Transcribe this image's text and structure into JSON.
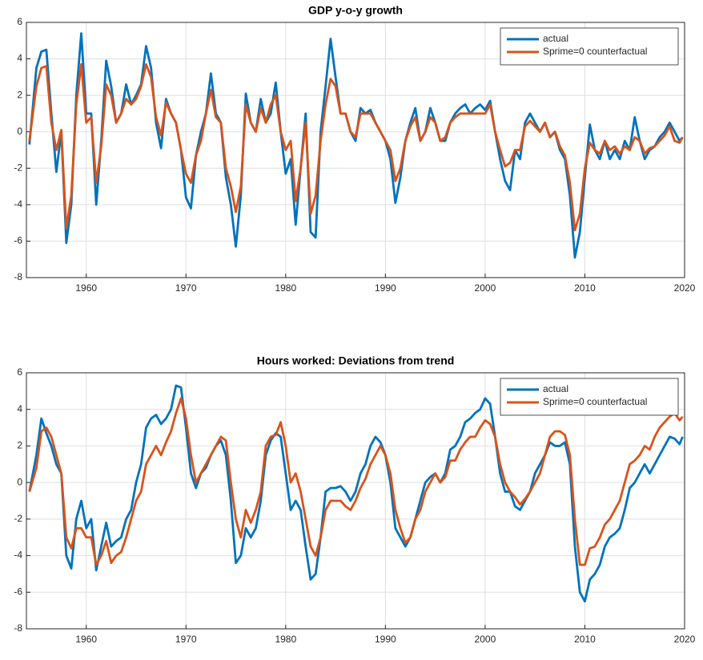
{
  "chart_data": [
    {
      "type": "line",
      "title": "GDP y-o-y growth",
      "x": [
        1954.3,
        1955,
        1955.5,
        1956,
        1956.5,
        1957,
        1957.5,
        1958,
        1958.5,
        1959,
        1959.5,
        1960,
        1960.5,
        1961,
        1961.5,
        1962,
        1962.5,
        1963,
        1963.5,
        1964,
        1964.5,
        1965,
        1965.5,
        1966,
        1966.5,
        1967,
        1967.5,
        1968,
        1968.5,
        1969,
        1969.5,
        1970,
        1970.5,
        1971,
        1971.5,
        1972,
        1972.5,
        1973,
        1973.5,
        1974,
        1974.5,
        1975,
        1975.5,
        1976,
        1976.5,
        1977,
        1977.5,
        1978,
        1978.5,
        1979,
        1979.5,
        1980,
        1980.5,
        1981,
        1981.5,
        1982,
        1982.5,
        1983,
        1983.5,
        1984,
        1984.5,
        1985,
        1985.5,
        1986,
        1986.5,
        1987,
        1987.5,
        1988,
        1988.5,
        1989,
        1989.5,
        1990,
        1990.5,
        1991,
        1991.5,
        1992,
        1992.5,
        1993,
        1993.5,
        1994,
        1994.5,
        1995,
        1995.5,
        1996,
        1996.5,
        1997,
        1997.5,
        1998,
        1998.5,
        1999,
        1999.5,
        2000,
        2000.5,
        2001,
        2001.5,
        2002,
        2002.5,
        2003,
        2003.5,
        2004,
        2004.5,
        2005,
        2005.5,
        2006,
        2006.5,
        2007,
        2007.5,
        2008,
        2008.5,
        2009,
        2009.5,
        2010,
        2010.5,
        2011,
        2011.5,
        2012,
        2012.5,
        2013,
        2013.5,
        2014,
        2014.5,
        2015,
        2015.5,
        2016,
        2016.5,
        2017,
        2017.5,
        2018,
        2018.5,
        2019,
        2019.5,
        2019.8
      ],
      "series": [
        {
          "name": "actual",
          "color": "#0072bd",
          "values": [
            -0.7,
            3.5,
            4.4,
            4.5,
            1.0,
            -2.2,
            0.0,
            -6.1,
            -4.0,
            2.0,
            5.4,
            1.0,
            1.0,
            -4.0,
            -0.5,
            3.9,
            2.5,
            0.5,
            1.0,
            2.6,
            1.5,
            2.0,
            2.6,
            4.7,
            3.5,
            0.5,
            -0.9,
            1.8,
            1.0,
            0.5,
            -1.0,
            -3.6,
            -4.2,
            -1.3,
            0.0,
            1.0,
            3.2,
            1.0,
            0.5,
            -2.5,
            -4.0,
            -6.3,
            -3.5,
            2.1,
            0.5,
            0.0,
            1.8,
            0.5,
            1.0,
            2.7,
            0.0,
            -2.3,
            -1.5,
            -5.1,
            -2.0,
            1.0,
            -5.5,
            -5.8,
            0.0,
            2.5,
            5.1,
            3.0,
            1.0,
            1.0,
            0.0,
            -0.5,
            1.3,
            1.0,
            1.2,
            0.5,
            0.0,
            -0.5,
            -1.5,
            -3.9,
            -2.5,
            -0.5,
            0.5,
            1.3,
            -0.5,
            0.0,
            1.3,
            0.5,
            -0.5,
            -0.5,
            0.5,
            1.0,
            1.3,
            1.5,
            1.0,
            1.3,
            1.5,
            1.2,
            1.7,
            0.0,
            -1.5,
            -2.7,
            -3.2,
            -1.0,
            -1.5,
            0.5,
            1.0,
            0.5,
            0.0,
            0.5,
            -0.3,
            0.0,
            -1.0,
            -1.5,
            -3.5,
            -6.9,
            -5.5,
            -2.5,
            0.4,
            -1.0,
            -1.5,
            -0.5,
            -1.5,
            -1.0,
            -1.5,
            -0.5,
            -1.0,
            0.8,
            -0.5,
            -1.5,
            -1.0,
            -0.8,
            -0.3,
            0.0,
            0.5,
            0.0,
            -0.5,
            -0.3
          ]
        },
        {
          "name": "Sprime=0 counterfactual",
          "color": "#d95319",
          "values": [
            -0.5,
            2.5,
            3.5,
            3.6,
            0.5,
            -1.0,
            0.1,
            -5.3,
            -3.5,
            1.5,
            3.7,
            0.5,
            0.8,
            -2.8,
            -0.8,
            2.6,
            2.0,
            0.5,
            1.0,
            1.8,
            1.5,
            1.8,
            2.5,
            3.7,
            3.0,
            0.8,
            -0.2,
            1.6,
            1.0,
            0.5,
            -1.0,
            -2.3,
            -2.8,
            -1.3,
            -0.5,
            1.0,
            2.3,
            0.8,
            0.5,
            -2.0,
            -3.0,
            -4.4,
            -3.0,
            1.5,
            0.5,
            0.0,
            1.3,
            0.5,
            1.5,
            2.0,
            0.0,
            -1.0,
            -0.5,
            -3.8,
            -2.0,
            0.5,
            -4.5,
            -3.5,
            -0.5,
            1.5,
            2.9,
            2.5,
            1.0,
            1.0,
            0.0,
            -0.3,
            1.0,
            1.0,
            1.0,
            0.5,
            0.0,
            -0.5,
            -1.0,
            -2.7,
            -2.0,
            -0.5,
            0.3,
            0.8,
            -0.5,
            0.0,
            0.8,
            0.5,
            -0.5,
            -0.3,
            0.5,
            0.8,
            1.0,
            1.0,
            1.0,
            1.0,
            1.0,
            1.0,
            1.5,
            0.0,
            -1.0,
            -1.9,
            -1.7,
            -1.0,
            -1.0,
            0.3,
            0.6,
            0.3,
            0.0,
            0.5,
            -0.3,
            0.0,
            -0.8,
            -1.3,
            -2.8,
            -5.4,
            -4.5,
            -2.0,
            -0.6,
            -1.0,
            -1.2,
            -0.5,
            -1.0,
            -0.8,
            -1.2,
            -0.8,
            -1.0,
            -0.3,
            -0.5,
            -1.2,
            -0.9,
            -0.8,
            -0.5,
            -0.2,
            0.3,
            -0.5,
            -0.6,
            -0.3
          ]
        }
      ],
      "xlim": [
        1954,
        2020
      ],
      "xticks": [
        1960,
        1970,
        1980,
        1990,
        2000,
        2010,
        2020
      ],
      "ylim": [
        -8,
        6
      ],
      "yticks": [
        -8,
        -6,
        -4,
        -2,
        0,
        2,
        4,
        6
      ],
      "grid": true,
      "legend": "upper right"
    },
    {
      "type": "line",
      "title": "Hours worked: Deviations from trend",
      "x": [
        1954.3,
        1955,
        1955.5,
        1956,
        1956.5,
        1957,
        1957.5,
        1958,
        1958.5,
        1959,
        1959.5,
        1960,
        1960.5,
        1961,
        1961.5,
        1962,
        1962.5,
        1963,
        1963.5,
        1964,
        1964.5,
        1965,
        1965.5,
        1966,
        1966.5,
        1967,
        1967.5,
        1968,
        1968.5,
        1969,
        1969.5,
        1970,
        1970.5,
        1971,
        1971.5,
        1972,
        1972.5,
        1973,
        1973.5,
        1974,
        1974.5,
        1975,
        1975.5,
        1976,
        1976.5,
        1977,
        1977.5,
        1978,
        1978.5,
        1979,
        1979.5,
        1980,
        1980.5,
        1981,
        1981.5,
        1982,
        1982.5,
        1983,
        1983.5,
        1984,
        1984.5,
        1985,
        1985.5,
        1986,
        1986.5,
        1987,
        1987.5,
        1988,
        1988.5,
        1989,
        1989.5,
        1990,
        1990.5,
        1991,
        1991.5,
        1992,
        1992.5,
        1993,
        1993.5,
        1994,
        1994.5,
        1995,
        1995.5,
        1996,
        1996.5,
        1997,
        1997.5,
        1998,
        1998.5,
        1999,
        1999.5,
        2000,
        2000.5,
        2001,
        2001.5,
        2002,
        2002.5,
        2003,
        2003.5,
        2004,
        2004.5,
        2005,
        2005.5,
        2006,
        2006.5,
        2007,
        2007.5,
        2008,
        2008.5,
        2009,
        2009.5,
        2010,
        2010.5,
        2011,
        2011.5,
        2012,
        2012.5,
        2013,
        2013.5,
        2014,
        2014.5,
        2015,
        2015.5,
        2016,
        2016.5,
        2017,
        2017.5,
        2018,
        2018.5,
        2019,
        2019.5,
        2019.8
      ],
      "series": [
        {
          "name": "actual",
          "color": "#0072bd",
          "values": [
            -0.5,
            1.5,
            3.5,
            2.7,
            2.0,
            1.0,
            0.5,
            -4.0,
            -4.7,
            -2.0,
            -1.0,
            -2.5,
            -2.0,
            -4.8,
            -3.5,
            -2.2,
            -3.5,
            -3.2,
            -3.0,
            -2.0,
            -1.5,
            0.0,
            1.0,
            3.0,
            3.5,
            3.7,
            3.2,
            3.5,
            4.0,
            5.3,
            5.2,
            3.0,
            0.5,
            -0.3,
            0.5,
            0.8,
            1.5,
            2.0,
            2.3,
            1.5,
            -1.0,
            -4.4,
            -4.0,
            -2.5,
            -3.0,
            -2.5,
            -1.0,
            1.5,
            2.3,
            2.7,
            2.5,
            0.5,
            -1.5,
            -1.0,
            -1.5,
            -3.5,
            -5.3,
            -5.0,
            -3.0,
            -0.5,
            -0.3,
            -0.3,
            -0.2,
            -0.5,
            -1.0,
            -0.5,
            0.5,
            1.0,
            2.0,
            2.5,
            2.2,
            1.5,
            0.0,
            -2.5,
            -3.0,
            -3.5,
            -3.0,
            -2.0,
            -1.0,
            0.0,
            0.3,
            0.5,
            0.0,
            0.5,
            1.8,
            2.0,
            2.5,
            3.3,
            3.5,
            3.8,
            4.0,
            4.6,
            4.3,
            2.5,
            0.5,
            -0.5,
            -0.5,
            -1.3,
            -1.5,
            -1.0,
            -0.5,
            0.5,
            1.0,
            1.5,
            2.2,
            2.0,
            2.0,
            2.2,
            1.0,
            -3.5,
            -6.0,
            -6.5,
            -5.3,
            -5.0,
            -4.5,
            -3.5,
            -3.0,
            -2.8,
            -2.5,
            -1.5,
            -0.3,
            0.0,
            0.5,
            1.0,
            0.5,
            1.0,
            1.5,
            2.0,
            2.5,
            2.4,
            2.1,
            2.5
          ]
        },
        {
          "name": "Sprime=0 counterfactual",
          "color": "#d95319",
          "values": [
            -0.5,
            0.8,
            2.8,
            3.0,
            2.5,
            1.5,
            0.5,
            -3.0,
            -3.6,
            -2.5,
            -2.5,
            -3.0,
            -3.0,
            -4.5,
            -4.0,
            -3.2,
            -4.4,
            -4.0,
            -3.8,
            -3.0,
            -2.0,
            -1.0,
            -0.5,
            1.0,
            1.5,
            2.0,
            1.5,
            2.2,
            2.8,
            3.8,
            4.6,
            3.5,
            1.5,
            0.0,
            0.5,
            1.0,
            1.5,
            2.0,
            2.5,
            2.3,
            0.0,
            -2.0,
            -3.0,
            -1.5,
            -2.2,
            -1.5,
            -0.5,
            2.0,
            2.5,
            2.6,
            3.3,
            2.0,
            0.0,
            0.5,
            -0.5,
            -2.0,
            -3.5,
            -4.0,
            -3.0,
            -1.5,
            -1.0,
            -1.0,
            -1.0,
            -1.3,
            -1.5,
            -1.0,
            -0.3,
            0.2,
            1.0,
            1.5,
            2.0,
            1.5,
            0.5,
            -1.5,
            -2.5,
            -3.3,
            -3.0,
            -2.0,
            -1.5,
            -0.5,
            0.0,
            0.5,
            0.0,
            0.3,
            1.2,
            1.2,
            1.8,
            2.2,
            2.5,
            2.5,
            3.0,
            3.4,
            3.2,
            2.5,
            1.0,
            0.0,
            -0.5,
            -0.8,
            -1.2,
            -0.9,
            -0.5,
            0.0,
            0.5,
            1.5,
            2.5,
            2.8,
            2.8,
            2.6,
            1.5,
            -2.0,
            -4.5,
            -4.5,
            -3.6,
            -3.5,
            -3.0,
            -2.3,
            -2.0,
            -1.5,
            -1.0,
            0.0,
            1.0,
            1.2,
            1.5,
            2.0,
            1.8,
            2.5,
            3.0,
            3.3,
            3.6,
            3.8,
            3.4,
            3.6
          ]
        }
      ],
      "xlim": [
        1954,
        2020
      ],
      "xticks": [
        1960,
        1970,
        1980,
        1990,
        2000,
        2010,
        2020
      ],
      "ylim": [
        -8,
        6
      ],
      "yticks": [
        -8,
        -6,
        -4,
        -2,
        0,
        2,
        4,
        6
      ],
      "grid": true,
      "legend": "upper right"
    }
  ]
}
